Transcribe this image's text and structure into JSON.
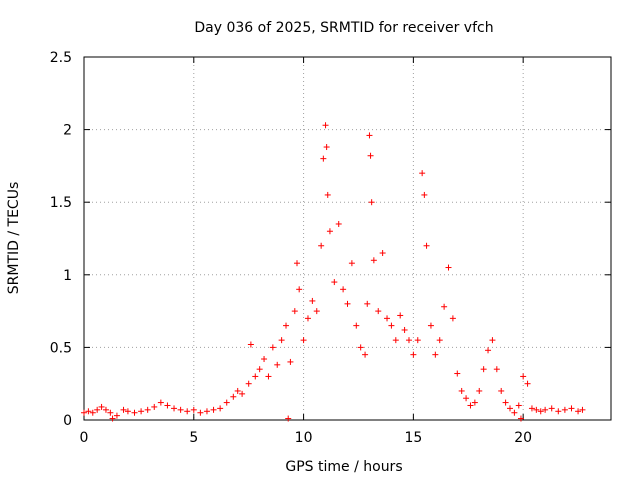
{
  "chart_data": {
    "type": "scatter",
    "title": "Day 036 of 2025, SRMTID for receiver vfch",
    "xlabel": "GPS time / hours",
    "ylabel": "SRMTID / TECUs",
    "xlim": [
      0,
      24
    ],
    "ylim": [
      0,
      2.5
    ],
    "xticks": [
      0,
      5,
      10,
      15,
      20
    ],
    "xtick_labels": [
      "0",
      "5",
      "10",
      "15",
      "20"
    ],
    "yticks": [
      0,
      0.5,
      1,
      1.5,
      2,
      2.5
    ],
    "ytick_labels": [
      "0",
      "0.5",
      "1",
      "1.5",
      "2",
      "2.5"
    ],
    "grid": true,
    "marker": "+",
    "series": [
      {
        "name": "SRMTID",
        "color": "#ff0000",
        "points": [
          [
            0.0,
            0.05
          ],
          [
            0.2,
            0.06
          ],
          [
            0.4,
            0.05
          ],
          [
            0.6,
            0.07
          ],
          [
            0.8,
            0.09
          ],
          [
            1.0,
            0.07
          ],
          [
            1.2,
            0.05
          ],
          [
            1.5,
            0.03
          ],
          [
            1.8,
            0.07
          ],
          [
            2.0,
            0.06
          ],
          [
            2.3,
            0.05
          ],
          [
            2.6,
            0.06
          ],
          [
            2.9,
            0.07
          ],
          [
            3.2,
            0.09
          ],
          [
            3.5,
            0.12
          ],
          [
            3.8,
            0.1
          ],
          [
            4.1,
            0.08
          ],
          [
            4.4,
            0.07
          ],
          [
            4.7,
            0.06
          ],
          [
            5.0,
            0.07
          ],
          [
            5.3,
            0.05
          ],
          [
            5.6,
            0.06
          ],
          [
            5.9,
            0.07
          ],
          [
            6.2,
            0.08
          ],
          [
            6.5,
            0.12
          ],
          [
            6.8,
            0.16
          ],
          [
            7.0,
            0.2
          ],
          [
            7.2,
            0.18
          ],
          [
            7.5,
            0.25
          ],
          [
            7.6,
            0.52
          ],
          [
            7.8,
            0.3
          ],
          [
            8.0,
            0.35
          ],
          [
            8.2,
            0.42
          ],
          [
            8.4,
            0.3
          ],
          [
            8.6,
            0.5
          ],
          [
            8.8,
            0.38
          ],
          [
            9.0,
            0.55
          ],
          [
            9.2,
            0.65
          ],
          [
            9.4,
            0.4
          ],
          [
            9.6,
            0.75
          ],
          [
            9.7,
            1.08
          ],
          [
            9.8,
            0.9
          ],
          [
            10.0,
            0.55
          ],
          [
            10.2,
            0.7
          ],
          [
            10.4,
            0.82
          ],
          [
            10.6,
            0.75
          ],
          [
            10.8,
            1.2
          ],
          [
            10.9,
            1.8
          ],
          [
            11.0,
            2.03
          ],
          [
            11.05,
            1.88
          ],
          [
            11.1,
            1.55
          ],
          [
            11.2,
            1.3
          ],
          [
            11.4,
            0.95
          ],
          [
            11.6,
            1.35
          ],
          [
            11.8,
            0.9
          ],
          [
            12.0,
            0.8
          ],
          [
            12.2,
            1.08
          ],
          [
            12.4,
            0.65
          ],
          [
            12.6,
            0.5
          ],
          [
            12.8,
            0.45
          ],
          [
            12.9,
            0.8
          ],
          [
            13.0,
            1.96
          ],
          [
            13.05,
            1.82
          ],
          [
            13.1,
            1.5
          ],
          [
            13.2,
            1.1
          ],
          [
            13.4,
            0.75
          ],
          [
            13.6,
            1.15
          ],
          [
            13.8,
            0.7
          ],
          [
            14.0,
            0.65
          ],
          [
            14.2,
            0.55
          ],
          [
            14.4,
            0.72
          ],
          [
            14.6,
            0.62
          ],
          [
            14.8,
            0.55
          ],
          [
            15.0,
            0.45
          ],
          [
            15.2,
            0.55
          ],
          [
            15.4,
            1.7
          ],
          [
            15.5,
            1.55
          ],
          [
            15.6,
            1.2
          ],
          [
            15.8,
            0.65
          ],
          [
            16.0,
            0.45
          ],
          [
            16.2,
            0.55
          ],
          [
            16.4,
            0.78
          ],
          [
            16.6,
            1.05
          ],
          [
            16.8,
            0.7
          ],
          [
            17.0,
            0.32
          ],
          [
            17.2,
            0.2
          ],
          [
            17.4,
            0.15
          ],
          [
            17.6,
            0.1
          ],
          [
            17.8,
            0.12
          ],
          [
            18.0,
            0.2
          ],
          [
            18.2,
            0.35
          ],
          [
            18.4,
            0.48
          ],
          [
            18.6,
            0.55
          ],
          [
            18.8,
            0.35
          ],
          [
            19.0,
            0.2
          ],
          [
            19.2,
            0.12
          ],
          [
            19.4,
            0.08
          ],
          [
            19.6,
            0.05
          ],
          [
            19.8,
            0.1
          ],
          [
            20.0,
            0.3
          ],
          [
            20.2,
            0.25
          ],
          [
            20.4,
            0.08
          ],
          [
            20.6,
            0.07
          ],
          [
            20.8,
            0.06
          ],
          [
            21.0,
            0.07
          ],
          [
            21.3,
            0.08
          ],
          [
            21.6,
            0.06
          ],
          [
            21.9,
            0.07
          ],
          [
            22.2,
            0.08
          ],
          [
            22.5,
            0.06
          ],
          [
            22.7,
            0.07
          ],
          [
            1.3,
            0.01
          ],
          [
            9.3,
            0.01
          ],
          [
            19.9,
            0.01
          ]
        ]
      }
    ]
  }
}
